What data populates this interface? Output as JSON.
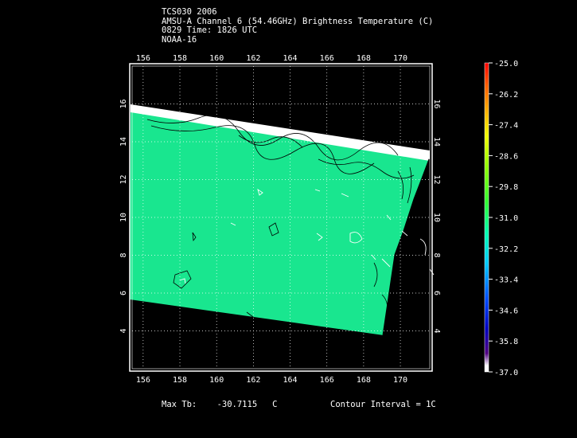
{
  "header": {
    "line1": "TCS030 2006",
    "line2": "AMSU-A Channel 6 (54.46GHz) Brightness Temperature (C)",
    "line3": "0829 Time: 1826 UTC",
    "line4": "NOAA-16"
  },
  "footer": {
    "max_tb_label": "Max Tb:",
    "max_tb_value": "-30.7115",
    "max_tb_unit": "C",
    "contour_interval": "Contour Interval = 1C"
  },
  "map": {
    "lon_ticks": [
      "156",
      "158",
      "160",
      "162",
      "164",
      "166",
      "168",
      "170"
    ],
    "lat_ticks": [
      "4",
      "6",
      "8",
      "10",
      "12",
      "14",
      "16"
    ],
    "lon_range": [
      155.4,
      171.6
    ],
    "lat_range": [
      2.0,
      18.0
    ],
    "swath_color": "#19e68f",
    "background": "#000000"
  },
  "colorbar": {
    "labels": [
      "-25.0",
      "-26.2",
      "-27.4",
      "-28.6",
      "-29.8",
      "-31.0",
      "-32.2",
      "-33.4",
      "-34.6",
      "-35.8",
      "-37.0"
    ],
    "colors_top_to_bottom": [
      "#ff0000",
      "#ff5a00",
      "#ffb400",
      "#f0ff00",
      "#96ff00",
      "#30ff30",
      "#00ffb0",
      "#00c8ff",
      "#0050ff",
      "#0000c0",
      "#500080",
      "#ffffff"
    ]
  }
}
